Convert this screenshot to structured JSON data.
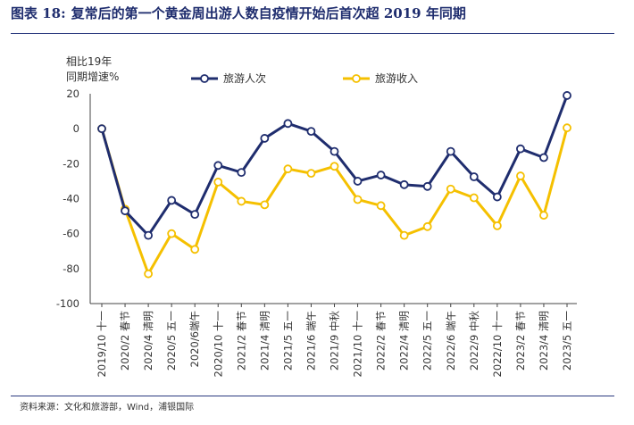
{
  "figure": {
    "label": "图表 18:",
    "title": "复常后的第一个黄金周出游人数自疫情开始后首次超 2019 年同期",
    "source": "资料来源：文化和旅游部，Wind，浦银国际"
  },
  "colors": {
    "series_1": "#1f2d6e",
    "series_2": "#f5c000",
    "axis": "#444444"
  },
  "chart_data": {
    "type": "line",
    "ylabel_lines": [
      "相比19年",
      "同期增速%"
    ],
    "ylim": [
      -100,
      20
    ],
    "yticks": [
      20,
      0,
      -20,
      -40,
      -60,
      -80,
      -100
    ],
    "grid": false,
    "legend_position": "top",
    "categories": [
      "2019/10 十一",
      "2020/2 春节",
      "2020/4 清明",
      "2020/5 五一",
      "2020/6端午",
      "2020/10 十一",
      "2021/2 春节",
      "2021/4 清明",
      "2021/5 五一",
      "2021/6 端午",
      "2021/9 中秋",
      "2021/10 十一",
      "2022/2 春节",
      "2022/4 清明",
      "2022/5 五一",
      "2022/6 端午",
      "2022/9 中秋",
      "2022/10 十一",
      "2023/2 春节",
      "2023/4 清明",
      "2023/5 五一"
    ],
    "series": [
      {
        "name": "旅游人次",
        "values": [
          0,
          -47,
          -61,
          -41,
          -49,
          -21,
          -25,
          -5.5,
          3,
          -1.5,
          -13,
          -30,
          -26.5,
          -32,
          -33,
          -13,
          -27.5,
          -39,
          -11.5,
          -16.5,
          19
        ]
      },
      {
        "name": "旅游收入",
        "values": [
          0,
          -46,
          -83,
          -60,
          -69,
          -30.5,
          -41.5,
          -43.5,
          -23,
          -25.5,
          -21.5,
          -40.5,
          -44,
          -61,
          -56,
          -34.5,
          -39.5,
          -55.5,
          -27,
          -49.5,
          0.5
        ]
      }
    ]
  }
}
